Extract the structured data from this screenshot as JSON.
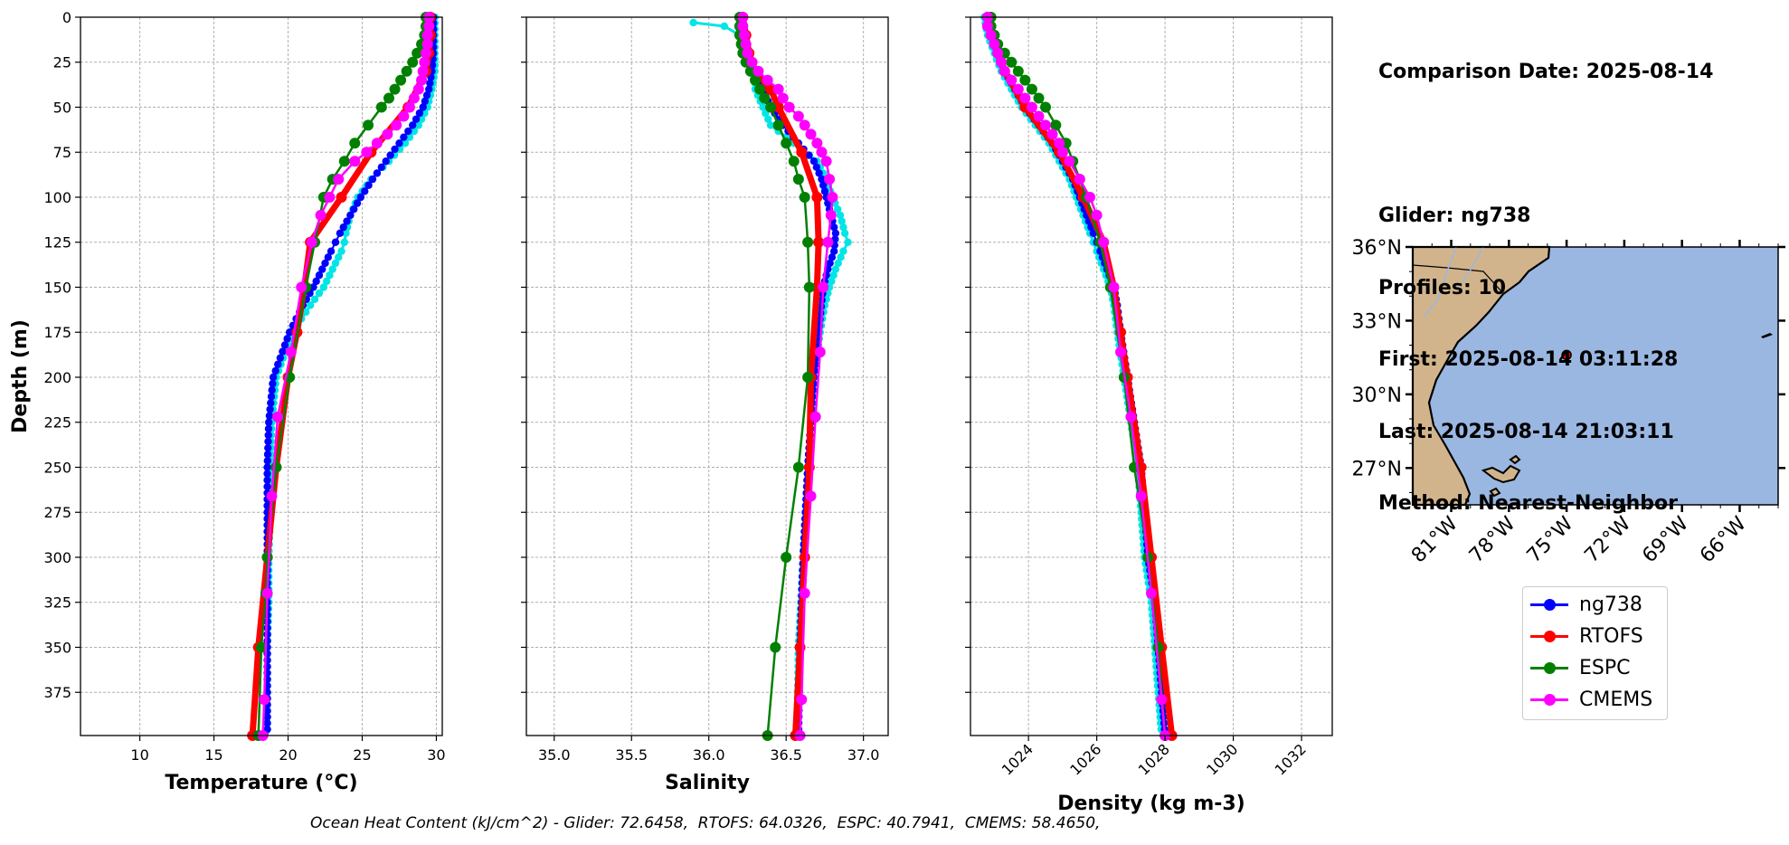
{
  "info": {
    "comparison_date": "Comparison Date: 2025-08-14",
    "glider": "Glider: ng738",
    "profiles": "Profiles: 10",
    "first": "First: 2025-08-14 03:11:28",
    "last": "Last: 2025-08-14 21:03:11",
    "method": "Method: Nearest-Neighbor"
  },
  "footer": "Ocean Heat Content (kJ/cm^2) - Glider: 72.6458,  RTOFS: 64.0326,  ESPC: 40.7941,  CMEMS: 58.4650,",
  "colors": {
    "ng738": "#0000ff",
    "glider_raw": "#00e5e5",
    "RTOFS": "#ff0000",
    "ESPC": "#008000",
    "CMEMS": "#ff00ff",
    "land": "#d2b48c",
    "ocean": "#9ab7e2"
  },
  "legend": [
    {
      "name": "ng738",
      "color": "#0000ff"
    },
    {
      "name": "RTOFS",
      "color": "#ff0000"
    },
    {
      "name": "ESPC",
      "color": "#008000"
    },
    {
      "name": "CMEMS",
      "color": "#ff00ff"
    }
  ],
  "chart_data": [
    {
      "type": "line",
      "xlabel": "Temperature (°C)",
      "ylabel": "Depth (m)",
      "xlim": [
        6,
        30.4
      ],
      "ylim": [
        399,
        0
      ],
      "xticks": [
        10,
        15,
        20,
        25,
        30
      ],
      "yticks": [
        0,
        25,
        50,
        75,
        100,
        125,
        150,
        175,
        200,
        225,
        250,
        275,
        300,
        325,
        350,
        375
      ],
      "grid": true,
      "depth": [
        0,
        10,
        20,
        30,
        40,
        50,
        60,
        70,
        80,
        90,
        100,
        110,
        120,
        125,
        130,
        140,
        150,
        160,
        175,
        200,
        225,
        250,
        275,
        300,
        325,
        350,
        375,
        399
      ],
      "series": [
        {
          "name": "glider_raw",
          "values": [
            29.9,
            29.9,
            29.9,
            29.9,
            29.7,
            29.4,
            28.8,
            27.9,
            26.8,
            25.6,
            24.7,
            24.2,
            23.9,
            23.8,
            23.6,
            23.0,
            22.4,
            21.5,
            20.3,
            19.2,
            18.9,
            18.8,
            18.8,
            18.7,
            18.7,
            18.6,
            18.6,
            18.6
          ]
        },
        {
          "name": "ng738",
          "values": [
            29.8,
            29.8,
            29.8,
            29.7,
            29.5,
            29.1,
            28.4,
            27.5,
            26.6,
            25.7,
            24.9,
            24.2,
            23.5,
            23.2,
            22.9,
            22.3,
            21.7,
            21.0,
            20.1,
            19.0,
            18.7,
            18.6,
            18.6,
            18.6,
            18.6,
            18.6,
            18.6,
            18.6
          ]
        },
        {
          "name": "RTOFS",
          "depth": [
            0,
            10,
            20,
            30,
            50,
            75,
            100,
            125,
            150,
            175,
            200,
            250,
            300,
            350,
            399
          ],
          "values": [
            29.6,
            29.6,
            29.5,
            29.3,
            28.1,
            25.6,
            23.6,
            21.5,
            21.1,
            20.6,
            20.0,
            19.2,
            18.6,
            18.0,
            17.6
          ]
        },
        {
          "name": "ESPC",
          "depth": [
            0,
            5,
            10,
            15,
            20,
            25,
            30,
            35,
            40,
            45,
            50,
            60,
            70,
            80,
            90,
            100,
            125,
            150,
            200,
            250,
            300,
            320,
            350,
            399
          ],
          "values": [
            29.3,
            29.3,
            29.2,
            29.0,
            28.7,
            28.4,
            28.0,
            27.6,
            27.2,
            26.8,
            26.3,
            25.4,
            24.5,
            23.8,
            23.0,
            22.4,
            21.8,
            21.2,
            20.1,
            19.2,
            18.6,
            18.5,
            18.2,
            18.0
          ]
        },
        {
          "name": "CMEMS",
          "depth": [
            0,
            5,
            10,
            15,
            20,
            25,
            30,
            35,
            40,
            45,
            50,
            55,
            60,
            65,
            70,
            75,
            80,
            90,
            100,
            110,
            125,
            150,
            186,
            222,
            266,
            320,
            379,
            399
          ],
          "values": [
            29.5,
            29.5,
            29.4,
            29.4,
            29.3,
            29.2,
            29.1,
            29.0,
            28.8,
            28.5,
            28.2,
            27.8,
            27.3,
            26.7,
            26.0,
            25.3,
            24.5,
            23.4,
            22.8,
            22.2,
            21.6,
            20.9,
            20.2,
            19.3,
            18.9,
            18.6,
            18.4,
            18.3
          ]
        }
      ]
    },
    {
      "type": "line",
      "xlabel": "Salinity",
      "xlim": [
        34.82,
        37.16
      ],
      "ylim": [
        399,
        0
      ],
      "xticks": [
        35.0,
        35.5,
        36.0,
        36.5,
        37.0
      ],
      "tick_labels": [
        "35.0",
        "35.5",
        "36.0",
        "36.5",
        "37.0"
      ],
      "grid": true,
      "series": [
        {
          "name": "glider_raw",
          "depth": [
            3,
            5,
            10,
            20,
            30,
            40,
            50,
            60,
            70,
            80,
            90,
            100,
            110,
            120,
            125,
            130,
            140,
            150,
            160,
            175,
            200,
            250,
            300,
            350,
            399
          ],
          "values": [
            35.9,
            36.1,
            36.2,
            36.25,
            36.3,
            36.3,
            36.35,
            36.4,
            36.55,
            36.7,
            36.76,
            36.8,
            36.85,
            36.88,
            36.9,
            36.87,
            36.82,
            36.78,
            36.75,
            36.72,
            36.68,
            36.64,
            36.61,
            36.58,
            36.57
          ]
        },
        {
          "name": "ng738",
          "depth": [
            0,
            10,
            20,
            30,
            40,
            50,
            60,
            70,
            80,
            90,
            100,
            110,
            120,
            130,
            140,
            150,
            175,
            200,
            250,
            300,
            350,
            399
          ],
          "values": [
            36.2,
            36.2,
            36.22,
            36.3,
            36.35,
            36.4,
            36.48,
            36.58,
            36.68,
            36.73,
            36.76,
            36.79,
            36.82,
            36.81,
            36.77,
            36.74,
            36.71,
            36.68,
            36.64,
            36.61,
            36.59,
            36.58
          ]
        },
        {
          "name": "RTOFS",
          "depth": [
            0,
            10,
            20,
            30,
            40,
            50,
            75,
            100,
            125,
            150,
            200,
            250,
            300,
            350,
            399
          ],
          "values": [
            36.22,
            36.24,
            36.26,
            36.3,
            36.4,
            36.45,
            36.6,
            36.7,
            36.71,
            36.7,
            36.66,
            36.65,
            36.62,
            36.59,
            36.56
          ]
        },
        {
          "name": "ESPC",
          "depth": [
            0,
            5,
            10,
            15,
            20,
            25,
            30,
            35,
            40,
            45,
            50,
            60,
            70,
            80,
            90,
            100,
            125,
            150,
            200,
            250,
            300,
            350,
            399
          ],
          "values": [
            36.2,
            36.2,
            36.2,
            36.21,
            36.22,
            36.24,
            36.27,
            36.3,
            36.33,
            36.36,
            36.4,
            36.45,
            36.5,
            36.55,
            36.58,
            36.62,
            36.64,
            36.65,
            36.64,
            36.58,
            36.5,
            36.43,
            36.38
          ]
        },
        {
          "name": "CMEMS",
          "depth": [
            0,
            5,
            10,
            15,
            20,
            25,
            30,
            35,
            40,
            45,
            50,
            55,
            60,
            65,
            70,
            75,
            80,
            90,
            100,
            110,
            125,
            150,
            186,
            222,
            266,
            320,
            379,
            399
          ],
          "values": [
            36.22,
            36.22,
            36.23,
            36.24,
            36.25,
            36.28,
            36.32,
            36.38,
            36.45,
            36.48,
            36.52,
            36.58,
            36.62,
            36.66,
            36.7,
            36.73,
            36.76,
            36.78,
            36.8,
            36.79,
            36.77,
            36.74,
            36.72,
            36.69,
            36.66,
            36.62,
            36.6,
            36.59
          ]
        }
      ]
    },
    {
      "type": "line",
      "xlabel": "Density (kg m-3)",
      "xlim": [
        1022.3,
        1032.9
      ],
      "ylim": [
        399,
        0
      ],
      "xticks": [
        1024,
        1026,
        1028,
        1030,
        1032
      ],
      "grid": true,
      "depth": [
        0,
        10,
        20,
        30,
        40,
        50,
        60,
        70,
        80,
        90,
        100,
        110,
        120,
        125,
        130,
        140,
        150,
        160,
        175,
        200,
        225,
        250,
        275,
        300,
        325,
        350,
        375,
        399
      ],
      "series": [
        {
          "name": "glider_raw",
          "values": [
            1022.7,
            1022.8,
            1023.0,
            1023.2,
            1023.5,
            1023.8,
            1024.2,
            1024.6,
            1024.9,
            1025.2,
            1025.4,
            1025.6,
            1025.8,
            1025.9,
            1026.0,
            1026.2,
            1026.4,
            1026.5,
            1026.6,
            1026.8,
            1027.0,
            1027.2,
            1027.3,
            1027.4,
            1027.6,
            1027.7,
            1027.8,
            1027.9
          ]
        },
        {
          "name": "ng738",
          "values": [
            1022.8,
            1022.9,
            1023.1,
            1023.3,
            1023.6,
            1023.9,
            1024.3,
            1024.7,
            1025.0,
            1025.3,
            1025.5,
            1025.7,
            1025.9,
            1026.0,
            1026.1,
            1026.3,
            1026.5,
            1026.6,
            1026.7,
            1026.9,
            1027.1,
            1027.3,
            1027.4,
            1027.5,
            1027.7,
            1027.8,
            1027.9,
            1028.0
          ]
        },
        {
          "name": "RTOFS",
          "depth": [
            0,
            10,
            20,
            30,
            50,
            75,
            100,
            125,
            150,
            175,
            200,
            250,
            300,
            350,
            399
          ],
          "values": [
            1022.8,
            1022.9,
            1023.1,
            1023.3,
            1023.9,
            1024.9,
            1025.6,
            1026.2,
            1026.5,
            1026.7,
            1026.9,
            1027.3,
            1027.6,
            1027.9,
            1028.2
          ]
        },
        {
          "name": "ESPC",
          "depth": [
            0,
            5,
            10,
            15,
            20,
            25,
            30,
            35,
            40,
            45,
            50,
            60,
            70,
            80,
            90,
            100,
            125,
            150,
            200,
            250,
            300,
            350,
            399
          ],
          "values": [
            1022.9,
            1022.9,
            1023.0,
            1023.1,
            1023.3,
            1023.5,
            1023.7,
            1023.9,
            1024.1,
            1024.3,
            1024.5,
            1024.8,
            1025.1,
            1025.3,
            1025.5,
            1025.7,
            1026.1,
            1026.4,
            1026.8,
            1027.1,
            1027.5,
            1027.8,
            1028.0
          ]
        },
        {
          "name": "CMEMS",
          "depth": [
            0,
            5,
            10,
            15,
            20,
            25,
            30,
            35,
            40,
            45,
            50,
            55,
            60,
            65,
            70,
            75,
            80,
            90,
            100,
            110,
            125,
            150,
            186,
            222,
            266,
            320,
            379,
            399
          ],
          "values": [
            1022.8,
            1022.8,
            1022.9,
            1023.0,
            1023.1,
            1023.2,
            1023.3,
            1023.5,
            1023.7,
            1023.9,
            1024.1,
            1024.3,
            1024.5,
            1024.7,
            1024.9,
            1025.0,
            1025.2,
            1025.5,
            1025.8,
            1026.0,
            1026.2,
            1026.5,
            1026.7,
            1027.0,
            1027.3,
            1027.6,
            1027.9,
            1028.0
          ]
        }
      ]
    },
    {
      "type": "map",
      "lon_range": [
        -83.0,
        -64.0
      ],
      "lat_range": [
        25.5,
        36.0
      ],
      "lon_ticks": [
        "81°W",
        "78°W",
        "75°W",
        "72°W",
        "69°W",
        "66°W"
      ],
      "lat_ticks": [
        "36°N",
        "33°N",
        "30°N",
        "27°N"
      ],
      "glider_location": {
        "lon": -75.0,
        "lat": 31.6
      }
    }
  ]
}
